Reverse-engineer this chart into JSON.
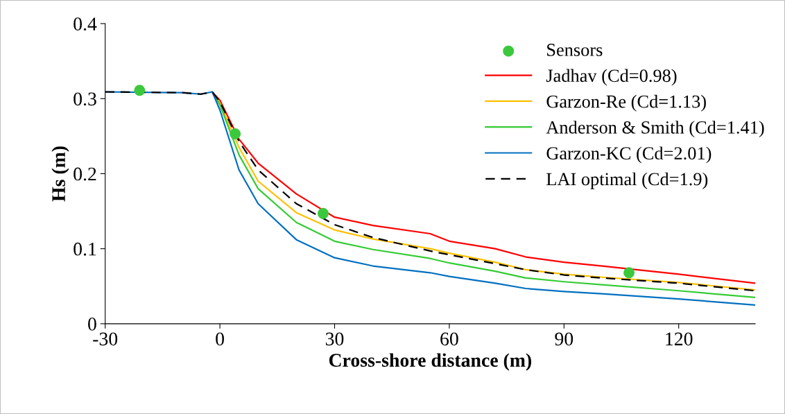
{
  "chart_data": {
    "type": "line",
    "xlabel": "Cross-shore distance (m)",
    "ylabel": "Hs (m)",
    "xlim": [
      -30,
      140
    ],
    "xticks": [
      -30,
      0,
      30,
      60,
      90,
      120
    ],
    "ylim": [
      0,
      0.4
    ],
    "yticks": [
      0,
      0.1,
      0.2,
      0.3,
      0.4
    ],
    "grid": false,
    "legend": "top right",
    "series": [
      {
        "name": "Sensors",
        "type": "scatter",
        "marker": "circle",
        "color": "#3cc83c",
        "x": [
          -21,
          4,
          27,
          107
        ],
        "values": [
          0.311,
          0.253,
          0.147,
          0.068
        ]
      },
      {
        "name": "Jadhav (Cd=0.98)",
        "color": "#ff0000",
        "line_style": "solid",
        "x": [
          -2,
          0,
          5,
          10,
          20,
          30,
          40,
          55,
          60,
          72,
          80,
          90,
          100,
          120,
          140
        ],
        "values": [
          0.309,
          0.298,
          0.246,
          0.214,
          0.173,
          0.142,
          0.131,
          0.12,
          0.11,
          0.1,
          0.089,
          0.082,
          0.077,
          0.066,
          0.054
        ]
      },
      {
        "name": "Garzon-Re (Cd=1.13)",
        "color": "#ffc000",
        "line_style": "solid",
        "x": [
          -2,
          0,
          5,
          10,
          20,
          30,
          40,
          55,
          60,
          72,
          80,
          90,
          100,
          120,
          140
        ],
        "values": [
          0.309,
          0.294,
          0.235,
          0.19,
          0.148,
          0.125,
          0.113,
          0.1,
          0.094,
          0.082,
          0.072,
          0.066,
          0.062,
          0.055,
          0.045
        ]
      },
      {
        "name": "Anderson & Smith (Cd=1.41)",
        "color": "#33cc33",
        "line_style": "solid",
        "x": [
          -2,
          0,
          5,
          10,
          20,
          30,
          40,
          55,
          60,
          72,
          80,
          90,
          100,
          120,
          140
        ],
        "values": [
          0.309,
          0.292,
          0.225,
          0.18,
          0.135,
          0.11,
          0.099,
          0.087,
          0.081,
          0.07,
          0.061,
          0.056,
          0.052,
          0.044,
          0.035
        ]
      },
      {
        "name": "Garzon-KC (Cd=2.01)",
        "color": "#0070c0",
        "line_style": "solid",
        "x": [
          -30,
          -10,
          -5,
          -2,
          0,
          5,
          10,
          20,
          30,
          40,
          55,
          60,
          72,
          80,
          90,
          100,
          120,
          140
        ],
        "values": [
          0.309,
          0.308,
          0.306,
          0.309,
          0.285,
          0.205,
          0.16,
          0.112,
          0.088,
          0.077,
          0.068,
          0.063,
          0.054,
          0.047,
          0.043,
          0.04,
          0.033,
          0.025
        ]
      },
      {
        "name": "LAI optimal (Cd=1.9)",
        "color": "#000000",
        "line_style": "dashed",
        "x": [
          -30,
          -10,
          -5,
          -2,
          0,
          5,
          10,
          20,
          30,
          40,
          55,
          60,
          72,
          80,
          90,
          100,
          120,
          140
        ],
        "values": [
          0.309,
          0.308,
          0.306,
          0.309,
          0.296,
          0.243,
          0.205,
          0.16,
          0.132,
          0.115,
          0.097,
          0.092,
          0.08,
          0.072,
          0.065,
          0.061,
          0.054,
          0.044
        ]
      }
    ]
  }
}
